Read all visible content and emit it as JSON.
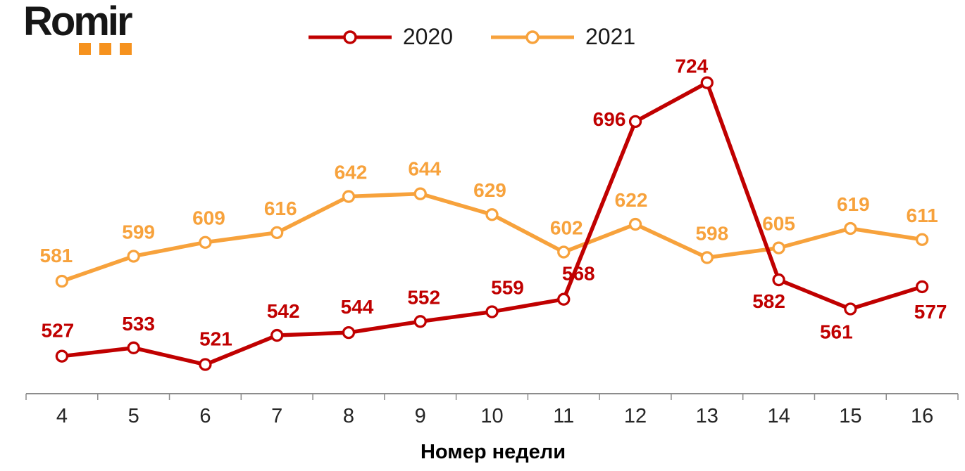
{
  "logo": {
    "text": "Romir",
    "accent_color": "#F6921E",
    "text_color": "#161616"
  },
  "legend": [
    {
      "label": "2020",
      "color": "#C00000"
    },
    {
      "label": "2021",
      "color": "#F7A23C"
    }
  ],
  "chart_data": {
    "type": "line",
    "categories": [
      "4",
      "5",
      "6",
      "7",
      "8",
      "9",
      "10",
      "11",
      "12",
      "13",
      "14",
      "15",
      "16"
    ],
    "series": [
      {
        "name": "2020",
        "color": "#C00000",
        "values": [
          527,
          533,
          521,
          542,
          544,
          552,
          559,
          568,
          696,
          724,
          582,
          561,
          577
        ],
        "label_offsets": [
          [
            -6,
            -27
          ],
          [
            7,
            -25
          ],
          [
            15,
            -27
          ],
          [
            9,
            -25
          ],
          [
            12,
            -27
          ],
          [
            5,
            -25
          ],
          [
            22,
            -25
          ],
          [
            21,
            -27
          ],
          [
            -37,
            6
          ],
          [
            -22,
            -14
          ],
          [
            -14,
            40
          ],
          [
            -20,
            42
          ],
          [
            12,
            45
          ]
        ]
      },
      {
        "name": "2021",
        "color": "#F7A23C",
        "values": [
          581,
          599,
          609,
          616,
          642,
          644,
          629,
          602,
          622,
          598,
          605,
          619,
          611
        ],
        "label_offsets": [
          [
            -8,
            -27
          ],
          [
            7,
            -25
          ],
          [
            5,
            -25
          ],
          [
            5,
            -25
          ],
          [
            3,
            -25
          ],
          [
            6,
            -26
          ],
          [
            -3,
            -25
          ],
          [
            4,
            -25
          ],
          [
            -6,
            -25
          ],
          [
            7,
            -25
          ],
          [
            0,
            -25
          ],
          [
            4,
            -25
          ],
          [
            0,
            -25
          ]
        ]
      }
    ],
    "xlabel": "Номер недели",
    "ylabel": "",
    "ylim": [
      500,
      790
    ],
    "grid": false,
    "y_axis_visible": false,
    "legend_position": "top-center",
    "marker": "open-circle",
    "data_labels": true,
    "axis_color": "#8C8C8C"
  }
}
